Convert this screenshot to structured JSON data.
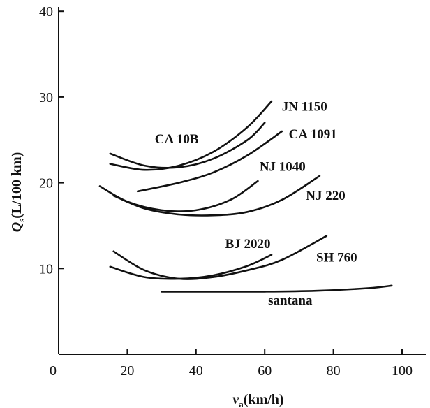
{
  "chart_data": {
    "type": "line",
    "xlabel": "v_a(km/h)",
    "ylabel": "Q_s(L/100 km)",
    "xlabel_parts": {
      "symbol": "v",
      "sub": "a",
      "unit": "(km/h)"
    },
    "ylabel_parts": {
      "symbol": "Q",
      "sub": "s",
      "unit": "(L/100 km)"
    },
    "xlim": [
      0,
      105
    ],
    "ylim": [
      0,
      40
    ],
    "x_ticks": [
      "0",
      "20",
      "40",
      "60",
      "80",
      "100"
    ],
    "y_ticks": [
      "10",
      "20",
      "30",
      "40"
    ],
    "grid": false,
    "series": [
      {
        "name": "JN 1150",
        "x": [
          15,
          25,
          35,
          45,
          55,
          62
        ],
        "y": [
          22.2,
          21.5,
          22.0,
          23.6,
          26.5,
          29.5
        ]
      },
      {
        "name": "CA 10B",
        "x": [
          15,
          25,
          35,
          45,
          55,
          60
        ],
        "y": [
          23.4,
          22.0,
          21.8,
          22.8,
          25.0,
          27.0
        ]
      },
      {
        "name": "CA 1091",
        "x": [
          23,
          35,
          45,
          55,
          65
        ],
        "y": [
          19.0,
          20.0,
          21.2,
          23.2,
          26.0
        ]
      },
      {
        "name": "NJ 1040",
        "x": [
          12,
          20,
          30,
          40,
          50,
          58
        ],
        "y": [
          19.6,
          17.8,
          16.8,
          16.8,
          18.0,
          20.2
        ]
      },
      {
        "name": "NJ 220",
        "x": [
          16,
          25,
          35,
          45,
          55,
          65,
          76
        ],
        "y": [
          18.5,
          17.0,
          16.3,
          16.2,
          16.6,
          18.0,
          20.8
        ]
      },
      {
        "name": "BJ 2020",
        "x": [
          15,
          25,
          35,
          45,
          55,
          62
        ],
        "y": [
          10.2,
          9.0,
          8.8,
          9.2,
          10.3,
          11.6
        ]
      },
      {
        "name": "SH 760",
        "x": [
          16,
          25,
          35,
          45,
          55,
          65,
          78
        ],
        "y": [
          12.0,
          9.8,
          8.8,
          9.0,
          9.8,
          11.0,
          13.8
        ]
      },
      {
        "name": "santana",
        "x": [
          30,
          45,
          60,
          75,
          90,
          97
        ],
        "y": [
          7.3,
          7.3,
          7.3,
          7.4,
          7.7,
          8.0
        ]
      }
    ],
    "annotations": [
      {
        "text": "JN 1150",
        "series": 0,
        "x": 65,
        "y": 28.4
      },
      {
        "text": "CA 10B",
        "series": 1,
        "x": 28,
        "y": 24.6
      },
      {
        "text": "CA 1091",
        "series": 2,
        "x": 67,
        "y": 25.2
      },
      {
        "text": "NJ 1040",
        "series": 3,
        "x": 58.5,
        "y": 21.4
      },
      {
        "text": "NJ 220",
        "series": 4,
        "x": 72,
        "y": 18.0
      },
      {
        "text": "BJ 2020",
        "series": 5,
        "x": 48.5,
        "y": 12.4
      },
      {
        "text": "SH 760",
        "series": 6,
        "x": 75,
        "y": 10.8
      },
      {
        "text": "santana",
        "series": 7,
        "x": 61,
        "y": 5.8
      }
    ]
  }
}
